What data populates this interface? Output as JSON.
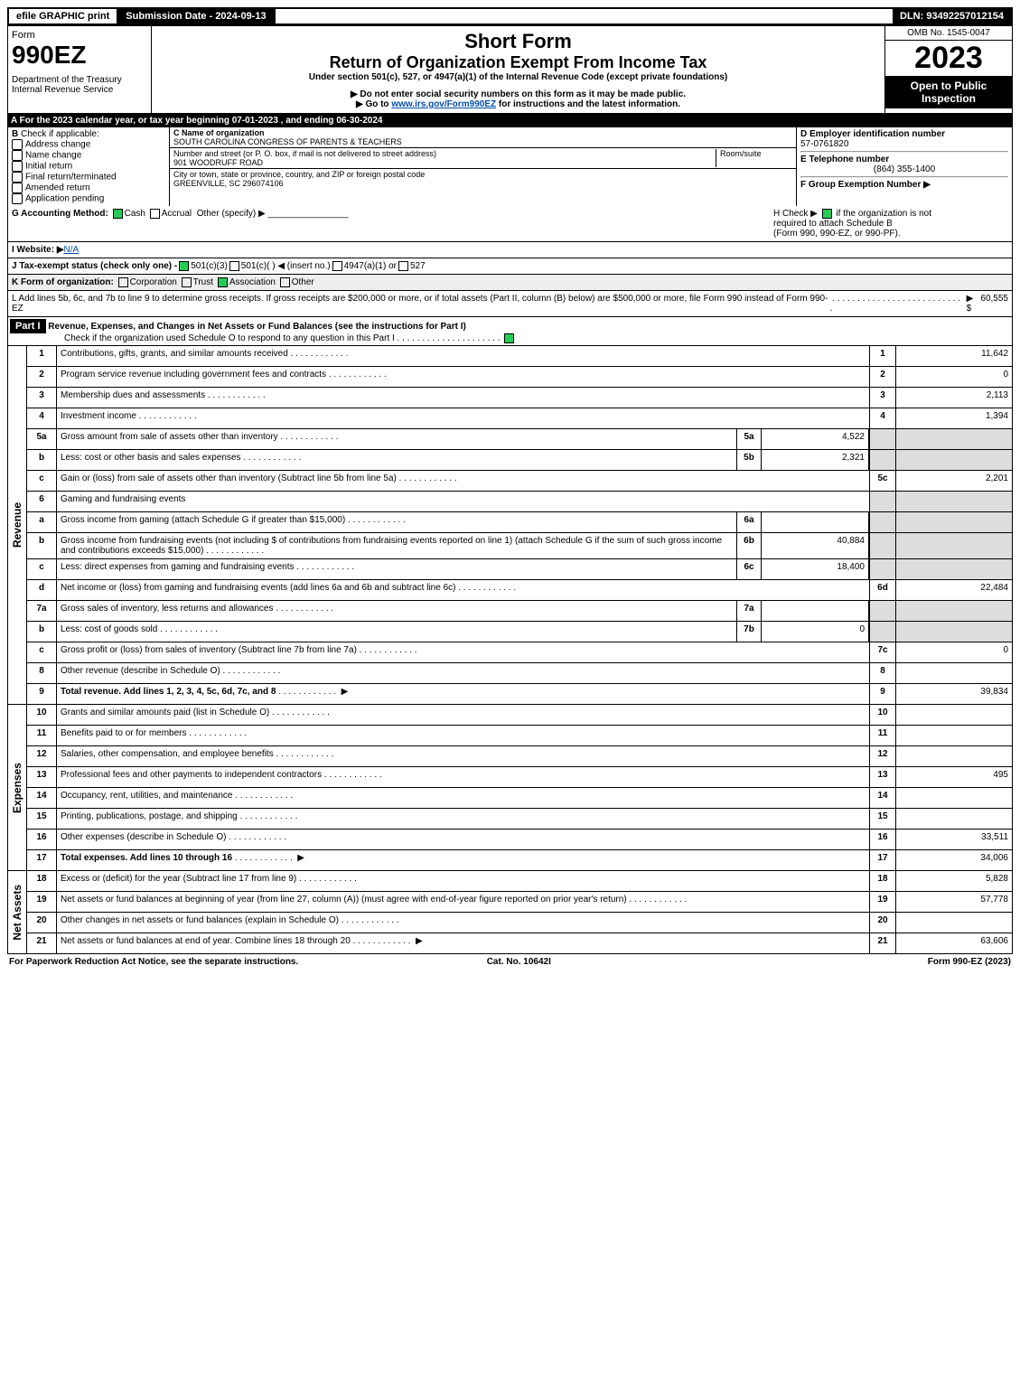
{
  "topbar": {
    "efile": "efile GRAPHIC print",
    "subdate": "Submission Date - 2024-09-13",
    "dln": "DLN: 93492257012154"
  },
  "header": {
    "form": "Form",
    "formnum": "990EZ",
    "dept": "Department of the Treasury\nInternal Revenue Service",
    "short": "Short Form",
    "title": "Return of Organization Exempt From Income Tax",
    "sub1": "Under section 501(c), 527, or 4947(a)(1) of the Internal Revenue Code (except private foundations)",
    "sub2": "▶ Do not enter social security numbers on this form as it may be made public.",
    "sub3_pre": "▶ Go to ",
    "sub3_link": "www.irs.gov/Form990EZ",
    "sub3_post": " for instructions and the latest information.",
    "omb": "OMB No. 1545-0047",
    "year": "2023",
    "inspect": "Open to Public Inspection"
  },
  "A": "A  For the 2023 calendar year, or tax year beginning 07-01-2023 , and ending 06-30-2024",
  "B": {
    "hdr": "B",
    "txt": "Check if applicable:",
    "opts": [
      "Address change",
      "Name change",
      "Initial return",
      "Final return/terminated",
      "Amended return",
      "Application pending"
    ]
  },
  "C": {
    "name_lbl": "C Name of organization",
    "name": "SOUTH CAROLINA CONGRESS OF PARENTS & TEACHERS",
    "street_lbl": "Number and street (or P. O. box, if mail is not delivered to street address)",
    "room_lbl": "Room/suite",
    "street": "901 WOODRUFF ROAD",
    "city_lbl": "City or town, state or province, country, and ZIP or foreign postal code",
    "city": "GREENVILLE, SC  296074106"
  },
  "D": {
    "ein_lbl": "D Employer identification number",
    "ein": "57-0761820",
    "tel_lbl": "E Telephone number",
    "tel": "(864) 355-1400",
    "grp_lbl": "F Group Exemption Number   ▶"
  },
  "G": {
    "lbl": "G Accounting Method:",
    "cash": "Cash",
    "accrual": "Accrual",
    "other": "Other (specify) ▶"
  },
  "H": {
    "txt1": "H  Check ▶",
    "txt2": "if the organization is not",
    "txt3": "required to attach Schedule B",
    "txt4": "(Form 990, 990-EZ, or 990-PF)."
  },
  "I": {
    "lbl": "I Website: ▶",
    "val": "N/A"
  },
  "J": {
    "txt": "J Tax-exempt status (check only one) - ",
    "a": "501(c)(3)",
    "b": "501(c)(  ) ◀ (insert no.)",
    "c": "4947(a)(1) or",
    "d": "527"
  },
  "K": {
    "txt": "K Form of organization:",
    "a": "Corporation",
    "b": "Trust",
    "c": "Association",
    "d": "Other"
  },
  "L": {
    "txt": "L Add lines 5b, 6c, and 7b to line 9 to determine gross receipts. If gross receipts are $200,000 or more, or if total assets (Part II, column (B) below) are $500,000 or more, file Form 990 instead of Form 990-EZ",
    "arrow": "▶ $",
    "val": "60,555"
  },
  "part1": {
    "hdr": "Part I",
    "title": "Revenue, Expenses, and Changes in Net Assets or Fund Balances (see the instructions for Part I)",
    "sub": "Check if the organization used Schedule O to respond to any question in this Part I"
  },
  "sides": {
    "rev": "Revenue",
    "exp": "Expenses",
    "net": "Net Assets"
  },
  "lines": {
    "l1": {
      "n": "1",
      "d": "Contributions, gifts, grants, and similar amounts received",
      "ln": "1",
      "v": "11,642"
    },
    "l2": {
      "n": "2",
      "d": "Program service revenue including government fees and contracts",
      "ln": "2",
      "v": "0"
    },
    "l3": {
      "n": "3",
      "d": "Membership dues and assessments",
      "ln": "3",
      "v": "2,113"
    },
    "l4": {
      "n": "4",
      "d": "Investment income",
      "ln": "4",
      "v": "1,394"
    },
    "l5a": {
      "n": "5a",
      "d": "Gross amount from sale of assets other than inventory",
      "mn": "5a",
      "mv": "4,522"
    },
    "l5b": {
      "n": "b",
      "d": "Less: cost or other basis and sales expenses",
      "mn": "5b",
      "mv": "2,321"
    },
    "l5c": {
      "n": "c",
      "d": "Gain or (loss) from sale of assets other than inventory (Subtract line 5b from line 5a)",
      "ln": "5c",
      "v": "2,201"
    },
    "l6": {
      "n": "6",
      "d": "Gaming and fundraising events"
    },
    "l6a": {
      "n": "a",
      "d": "Gross income from gaming (attach Schedule G if greater than $15,000)",
      "mn": "6a",
      "mv": ""
    },
    "l6b": {
      "n": "b",
      "d": "Gross income from fundraising events (not including $            of contributions from fundraising events reported on line 1) (attach Schedule G if the sum of such gross income and contributions exceeds $15,000)",
      "mn": "6b",
      "mv": "40,884"
    },
    "l6c": {
      "n": "c",
      "d": "Less: direct expenses from gaming and fundraising events",
      "mn": "6c",
      "mv": "18,400"
    },
    "l6d": {
      "n": "d",
      "d": "Net income or (loss) from gaming and fundraising events (add lines 6a and 6b and subtract line 6c)",
      "ln": "6d",
      "v": "22,484"
    },
    "l7a": {
      "n": "7a",
      "d": "Gross sales of inventory, less returns and allowances",
      "mn": "7a",
      "mv": ""
    },
    "l7b": {
      "n": "b",
      "d": "Less: cost of goods sold",
      "mn": "7b",
      "mv": "0"
    },
    "l7c": {
      "n": "c",
      "d": "Gross profit or (loss) from sales of inventory (Subtract line 7b from line 7a)",
      "ln": "7c",
      "v": "0"
    },
    "l8": {
      "n": "8",
      "d": "Other revenue (describe in Schedule O)",
      "ln": "8",
      "v": ""
    },
    "l9": {
      "n": "9",
      "d": "Total revenue. Add lines 1, 2, 3, 4, 5c, 6d, 7c, and 8",
      "ln": "9",
      "v": "39,834",
      "bold": true,
      "arrow": true
    },
    "l10": {
      "n": "10",
      "d": "Grants and similar amounts paid (list in Schedule O)",
      "ln": "10",
      "v": ""
    },
    "l11": {
      "n": "11",
      "d": "Benefits paid to or for members",
      "ln": "11",
      "v": ""
    },
    "l12": {
      "n": "12",
      "d": "Salaries, other compensation, and employee benefits",
      "ln": "12",
      "v": ""
    },
    "l13": {
      "n": "13",
      "d": "Professional fees and other payments to independent contractors",
      "ln": "13",
      "v": "495"
    },
    "l14": {
      "n": "14",
      "d": "Occupancy, rent, utilities, and maintenance",
      "ln": "14",
      "v": ""
    },
    "l15": {
      "n": "15",
      "d": "Printing, publications, postage, and shipping",
      "ln": "15",
      "v": ""
    },
    "l16": {
      "n": "16",
      "d": "Other expenses (describe in Schedule O)",
      "ln": "16",
      "v": "33,511"
    },
    "l17": {
      "n": "17",
      "d": "Total expenses. Add lines 10 through 16",
      "ln": "17",
      "v": "34,006",
      "bold": true,
      "arrow": true
    },
    "l18": {
      "n": "18",
      "d": "Excess or (deficit) for the year (Subtract line 17 from line 9)",
      "ln": "18",
      "v": "5,828"
    },
    "l19": {
      "n": "19",
      "d": "Net assets or fund balances at beginning of year (from line 27, column (A)) (must agree with end-of-year figure reported on prior year's return)",
      "ln": "19",
      "v": "57,778"
    },
    "l20": {
      "n": "20",
      "d": "Other changes in net assets or fund balances (explain in Schedule O)",
      "ln": "20",
      "v": ""
    },
    "l21": {
      "n": "21",
      "d": "Net assets or fund balances at end of year. Combine lines 18 through 20",
      "ln": "21",
      "v": "63,606",
      "arrow": true
    }
  },
  "footer": {
    "l": "For Paperwork Reduction Act Notice, see the separate instructions.",
    "m": "Cat. No. 10642I",
    "r": "Form 990-EZ (2023)"
  }
}
